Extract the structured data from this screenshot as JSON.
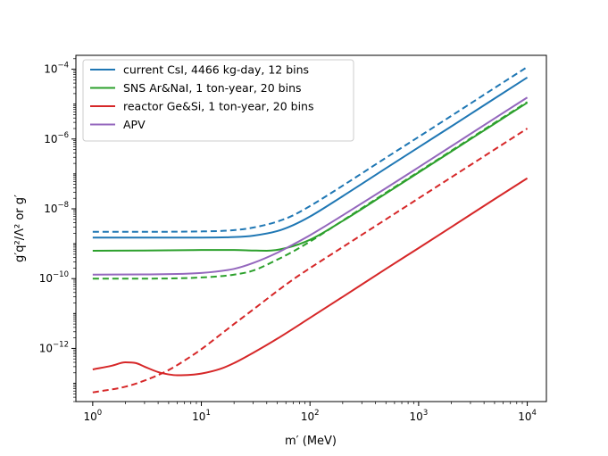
{
  "chart_data": {
    "type": "line",
    "title": "",
    "xlabel": "m′ (MeV)",
    "ylabel": "g′q²/Λ² or g′",
    "xscale": "log",
    "yscale": "log",
    "xlim": [
      0.7,
      15000
    ],
    "ylim": [
      3e-14,
      0.00025
    ],
    "x_ticks": [
      {
        "value": 1,
        "base": "10",
        "exp": "0"
      },
      {
        "value": 10,
        "base": "10",
        "exp": "1"
      },
      {
        "value": 100,
        "base": "10",
        "exp": "2"
      },
      {
        "value": 1000,
        "base": "10",
        "exp": "3"
      },
      {
        "value": 10000,
        "base": "10",
        "exp": "4"
      }
    ],
    "y_ticks": [
      {
        "value": 1e-12,
        "base": "10",
        "exp": "−12"
      },
      {
        "value": 1e-10,
        "base": "10",
        "exp": "−10"
      },
      {
        "value": 1e-08,
        "base": "10",
        "exp": "−8"
      },
      {
        "value": 1e-06,
        "base": "10",
        "exp": "−6"
      },
      {
        "value": 0.0001,
        "base": "10",
        "exp": "−4"
      }
    ],
    "legend_position": "top-left",
    "legend": [
      {
        "label": "current CsI, 4466 kg-day, 12 bins",
        "color": "#1f77b4"
      },
      {
        "label": "SNS Ar&NaI, 1 ton-year, 20 bins",
        "color": "#2ca02c"
      },
      {
        "label": "reactor Ge&Si, 1 ton-year, 20 bins",
        "color": "#d62728"
      },
      {
        "label": "APV",
        "color": "#9467bd"
      }
    ],
    "series": [
      {
        "name": "current CsI, 4466 kg-day, 12 bins",
        "style": "solid",
        "color": "#1f77b4",
        "x": [
          1,
          3,
          10,
          20,
          30,
          50,
          70,
          100,
          200,
          500,
          1000,
          2000,
          5000,
          10000
        ],
        "y": [
          1.5e-09,
          1.5e-09,
          1.5e-09,
          1.55e-09,
          1.7e-09,
          2.3e-09,
          3.4e-09,
          6e-09,
          2.3e-08,
          1.45e-07,
          5.8e-07,
          2.3e-06,
          1.45e-05,
          5.8e-05
        ]
      },
      {
        "name": "current CsI (dashed)",
        "style": "dashed",
        "color": "#1f77b4",
        "x": [
          1,
          3,
          10,
          20,
          30,
          50,
          70,
          100,
          200,
          500,
          1000,
          2000,
          5000,
          10000
        ],
        "y": [
          2.2e-09,
          2.2e-09,
          2.25e-09,
          2.45e-09,
          2.9e-09,
          4.3e-09,
          6.5e-09,
          1.2e-08,
          4.6e-08,
          2.9e-07,
          1.15e-06,
          4.6e-06,
          2.9e-05,
          0.000116
        ]
      },
      {
        "name": "SNS Ar&NaI, 1 ton-year, 20 bins",
        "style": "solid",
        "color": "#2ca02c",
        "x": [
          1,
          3,
          10,
          20,
          30,
          40,
          60,
          100,
          200,
          500,
          1000,
          2000,
          5000,
          10000
        ],
        "y": [
          6.3e-10,
          6.4e-10,
          6.6e-10,
          6.6e-10,
          6.4e-10,
          6.3e-10,
          7.5e-10,
          1.3e-09,
          4.5e-09,
          2.75e-08,
          1.1e-07,
          4.4e-07,
          2.75e-06,
          1.1e-05
        ]
      },
      {
        "name": "SNS Ar&NaI (dashed)",
        "style": "dashed",
        "color": "#2ca02c",
        "x": [
          1,
          3,
          10,
          20,
          30,
          50,
          70,
          100,
          200,
          500,
          1000,
          2000,
          5000,
          10000
        ],
        "y": [
          1e-10,
          1e-10,
          1.08e-10,
          1.3e-10,
          1.7e-10,
          3.5e-10,
          6e-10,
          1.15e-09,
          4.6e-09,
          2.9e-08,
          1.15e-07,
          4.6e-07,
          2.9e-06,
          1.15e-05
        ]
      },
      {
        "name": "reactor Ge&Si, 1 ton-year, 20 bins",
        "style": "solid",
        "color": "#d62728",
        "x": [
          1,
          1.5,
          2,
          2.5,
          3,
          4,
          5,
          6,
          8,
          10,
          15,
          20,
          30,
          50,
          100,
          200,
          500,
          1000,
          2000,
          5000,
          10000
        ],
        "y": [
          2.5e-13,
          3.2e-13,
          4e-13,
          3.8e-13,
          3e-13,
          2.1e-13,
          1.8e-13,
          1.7e-13,
          1.75e-13,
          1.9e-13,
          2.6e-13,
          3.8e-13,
          7.5e-13,
          1.9e-12,
          7.5e-12,
          3e-11,
          1.9e-10,
          7.5e-10,
          3e-09,
          1.9e-08,
          7.5e-08
        ]
      },
      {
        "name": "reactor Ge&Si (dashed)",
        "style": "dashed",
        "color": "#d62728",
        "x": [
          1,
          2,
          3,
          5,
          7,
          10,
          15,
          20,
          30,
          50,
          70,
          100,
          200,
          500,
          1000,
          2000,
          5000,
          10000
        ],
        "y": [
          5.5e-14,
          8e-14,
          1.2e-13,
          2.4e-13,
          4.5e-13,
          9.5e-13,
          2.5e-12,
          5e-12,
          1.3e-11,
          4.4e-11,
          9.5e-11,
          2e-10,
          8e-10,
          5e-09,
          2e-08,
          8e-08,
          5e-07,
          2e-06
        ]
      },
      {
        "name": "APV",
        "style": "solid",
        "color": "#9467bd",
        "x": [
          1,
          3,
          10,
          20,
          30,
          50,
          70,
          100,
          200,
          500,
          1000,
          2000,
          5000,
          10000
        ],
        "y": [
          1.3e-10,
          1.32e-10,
          1.45e-10,
          1.9e-10,
          2.8e-10,
          5.5e-10,
          9.5e-10,
          1.75e-09,
          6.5e-09,
          3.9e-08,
          1.55e-07,
          6.2e-07,
          3.9e-06,
          1.55e-05
        ]
      }
    ]
  }
}
